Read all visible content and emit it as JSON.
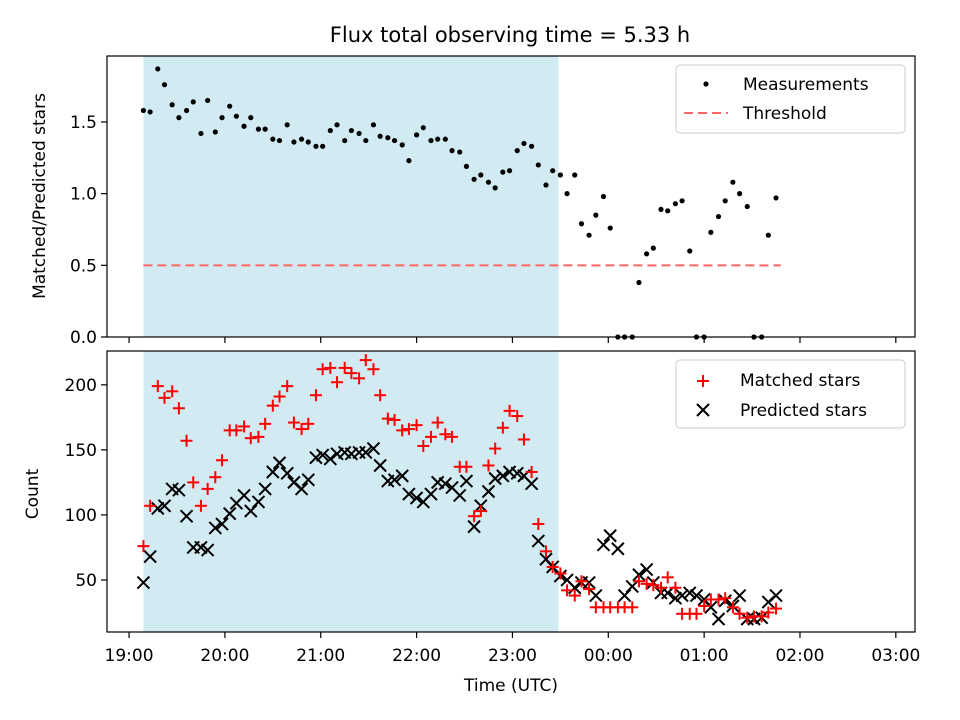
{
  "title": "Flux total observing time = 5.33 h",
  "x_tick_labels": [
    "19:00",
    "20:00",
    "21:00",
    "22:00",
    "23:00",
    "00:00",
    "01:00",
    "02:00",
    "03:00"
  ],
  "colors": {
    "shade": "#add8e6",
    "measurements": "#000000",
    "threshold": "#ff6666",
    "matched": "#ff0000",
    "predicted": "#000000"
  },
  "chart_data": [
    {
      "type": "scatter",
      "panel": "top",
      "xlabel": "",
      "ylabel": "Matched/Predicted stars",
      "x_unit": "hours since 19:00 UTC",
      "xlim": [
        -0.23,
        8.2
      ],
      "ylim": [
        0,
        1.96
      ],
      "yticks": [
        0.0,
        0.5,
        1.0,
        1.5
      ],
      "ytick_labels": [
        "0.0",
        "0.5",
        "1.0",
        "1.5"
      ],
      "shaded_range": [
        0.15,
        4.48
      ],
      "legend": {
        "position": "top-right",
        "entries": [
          "Measurements",
          "Threshold"
        ]
      },
      "threshold": {
        "name": "Threshold",
        "value": 0.5,
        "x_range": [
          0.15,
          6.8
        ],
        "style": "dashed"
      },
      "series": [
        {
          "name": "Measurements",
          "marker": "dot",
          "x": [
            0.15,
            0.22,
            0.3,
            0.37,
            0.45,
            0.52,
            0.6,
            0.67,
            0.75,
            0.82,
            0.9,
            0.97,
            1.05,
            1.12,
            1.2,
            1.27,
            1.35,
            1.42,
            1.5,
            1.57,
            1.65,
            1.72,
            1.8,
            1.87,
            1.95,
            2.02,
            2.1,
            2.17,
            2.25,
            2.32,
            2.4,
            2.47,
            2.55,
            2.62,
            2.7,
            2.77,
            2.85,
            2.92,
            3.0,
            3.07,
            3.15,
            3.22,
            3.3,
            3.37,
            3.45,
            3.52,
            3.6,
            3.67,
            3.75,
            3.82,
            3.9,
            3.97,
            4.05,
            4.12,
            4.2,
            4.27,
            4.35,
            4.42,
            4.5,
            4.57,
            4.65,
            4.72,
            4.8,
            4.87,
            4.95,
            5.02,
            5.1,
            5.17,
            5.25,
            5.32,
            5.4,
            5.47,
            5.55,
            5.62,
            5.7,
            5.77,
            5.85,
            5.92,
            6.0,
            6.07,
            6.15,
            6.22,
            6.3,
            6.37,
            6.45,
            6.52,
            6.6,
            6.67,
            6.75
          ],
          "y": [
            1.58,
            1.57,
            1.87,
            1.76,
            1.62,
            1.53,
            1.58,
            1.64,
            1.42,
            1.65,
            1.43,
            1.53,
            1.61,
            1.54,
            1.47,
            1.53,
            1.45,
            1.45,
            1.38,
            1.37,
            1.48,
            1.36,
            1.38,
            1.36,
            1.33,
            1.33,
            1.44,
            1.48,
            1.37,
            1.44,
            1.42,
            1.37,
            1.48,
            1.4,
            1.39,
            1.37,
            1.34,
            1.23,
            1.41,
            1.46,
            1.37,
            1.38,
            1.38,
            1.3,
            1.29,
            1.19,
            1.1,
            1.13,
            1.08,
            1.04,
            1.15,
            1.16,
            1.3,
            1.35,
            1.33,
            1.2,
            1.06,
            1.16,
            1.13,
            1.0,
            1.13,
            0.79,
            0.71,
            0.85,
            0.98,
            0.76,
            0.0,
            0.0,
            0.0,
            0.38,
            0.58,
            0.62,
            0.89,
            0.88,
            0.93,
            0.95,
            0.6,
            0.0,
            0.0,
            0.73,
            0.84,
            0.95,
            1.08,
            1.0,
            0.91,
            0.0,
            0.0,
            0.71,
            0.97
          ]
        }
      ]
    },
    {
      "type": "scatter",
      "panel": "bottom",
      "xlabel": "Time (UTC)",
      "ylabel": "Count",
      "x_unit": "hours since 19:00 UTC",
      "xlim": [
        -0.23,
        8.2
      ],
      "ylim": [
        10,
        226
      ],
      "yticks": [
        50,
        100,
        150,
        200
      ],
      "ytick_labels": [
        "50",
        "100",
        "150",
        "200"
      ],
      "shaded_range": [
        0.15,
        4.48
      ],
      "legend": {
        "position": "top-right",
        "entries": [
          "Matched stars",
          "Predicted stars"
        ]
      },
      "series": [
        {
          "name": "Matched stars",
          "marker": "plus",
          "x": [
            0.15,
            0.22,
            0.3,
            0.37,
            0.45,
            0.52,
            0.6,
            0.67,
            0.75,
            0.82,
            0.9,
            0.97,
            1.05,
            1.12,
            1.2,
            1.27,
            1.35,
            1.42,
            1.5,
            1.57,
            1.65,
            1.72,
            1.8,
            1.87,
            1.95,
            2.02,
            2.1,
            2.17,
            2.25,
            2.32,
            2.4,
            2.47,
            2.55,
            2.62,
            2.7,
            2.77,
            2.85,
            2.92,
            3.0,
            3.07,
            3.15,
            3.22,
            3.3,
            3.37,
            3.45,
            3.52,
            3.6,
            3.67,
            3.75,
            3.82,
            3.9,
            3.97,
            4.05,
            4.12,
            4.2,
            4.27,
            4.35,
            4.42,
            4.5,
            4.57,
            4.65,
            4.72,
            4.8,
            4.87,
            4.95,
            5.02,
            5.1,
            5.17,
            5.25,
            5.32,
            5.4,
            5.47,
            5.55,
            5.62,
            5.7,
            5.77,
            5.85,
            5.92,
            6.0,
            6.07,
            6.15,
            6.22,
            6.3,
            6.37,
            6.45,
            6.52,
            6.6,
            6.67,
            6.75
          ],
          "y": [
            76,
            107,
            199,
            190,
            195,
            182,
            157,
            125,
            107,
            120,
            129,
            142,
            165,
            165,
            168,
            159,
            160,
            170,
            184,
            191,
            199,
            171,
            166,
            170,
            192,
            212,
            213,
            202,
            213,
            209,
            205,
            219,
            212,
            192,
            174,
            173,
            165,
            166,
            169,
            153,
            160,
            171,
            162,
            160,
            137,
            137,
            99,
            103,
            138,
            151,
            167,
            180,
            176,
            158,
            133,
            93,
            72,
            60,
            55,
            42,
            38,
            49,
            43,
            29,
            29,
            29,
            29,
            29,
            29,
            49,
            47,
            46,
            44,
            52,
            44,
            24,
            24,
            24,
            30,
            35,
            35,
            36,
            29,
            24,
            21,
            22,
            22,
            25,
            28
          ]
        },
        {
          "name": "Predicted stars",
          "marker": "x",
          "x": [
            0.15,
            0.22,
            0.3,
            0.37,
            0.45,
            0.52,
            0.6,
            0.67,
            0.75,
            0.82,
            0.9,
            0.97,
            1.05,
            1.12,
            1.2,
            1.27,
            1.35,
            1.42,
            1.5,
            1.57,
            1.65,
            1.72,
            1.8,
            1.87,
            1.95,
            2.02,
            2.1,
            2.17,
            2.25,
            2.32,
            2.4,
            2.47,
            2.55,
            2.62,
            2.7,
            2.77,
            2.85,
            2.92,
            3.0,
            3.07,
            3.15,
            3.22,
            3.3,
            3.37,
            3.45,
            3.52,
            3.6,
            3.67,
            3.75,
            3.82,
            3.9,
            3.97,
            4.05,
            4.12,
            4.2,
            4.27,
            4.35,
            4.42,
            4.5,
            4.57,
            4.65,
            4.72,
            4.8,
            4.87,
            4.95,
            5.02,
            5.1,
            5.17,
            5.25,
            5.32,
            5.4,
            5.47,
            5.55,
            5.62,
            5.7,
            5.77,
            5.85,
            5.92,
            6.0,
            6.07,
            6.15,
            6.22,
            6.3,
            6.37,
            6.45,
            6.52,
            6.6,
            6.67,
            6.75
          ],
          "y": [
            48,
            68,
            105,
            107,
            120,
            119,
            99,
            75,
            75,
            73,
            90,
            93,
            101,
            109,
            115,
            103,
            110,
            120,
            133,
            140,
            132,
            125,
            120,
            127,
            144,
            146,
            143,
            147,
            148,
            147,
            148,
            148,
            151,
            138,
            126,
            127,
            130,
            116,
            113,
            110,
            116,
            125,
            124,
            121,
            115,
            126,
            91,
            107,
            118,
            128,
            130,
            133,
            132,
            130,
            124,
            80,
            66,
            60,
            53,
            50,
            44,
            48,
            48,
            38,
            77,
            84,
            74,
            38,
            45,
            54,
            58,
            48,
            40,
            40,
            36,
            38,
            40,
            38,
            35,
            29,
            20,
            34,
            30,
            38,
            20,
            20,
            21,
            33,
            38
          ]
        }
      ]
    }
  ]
}
